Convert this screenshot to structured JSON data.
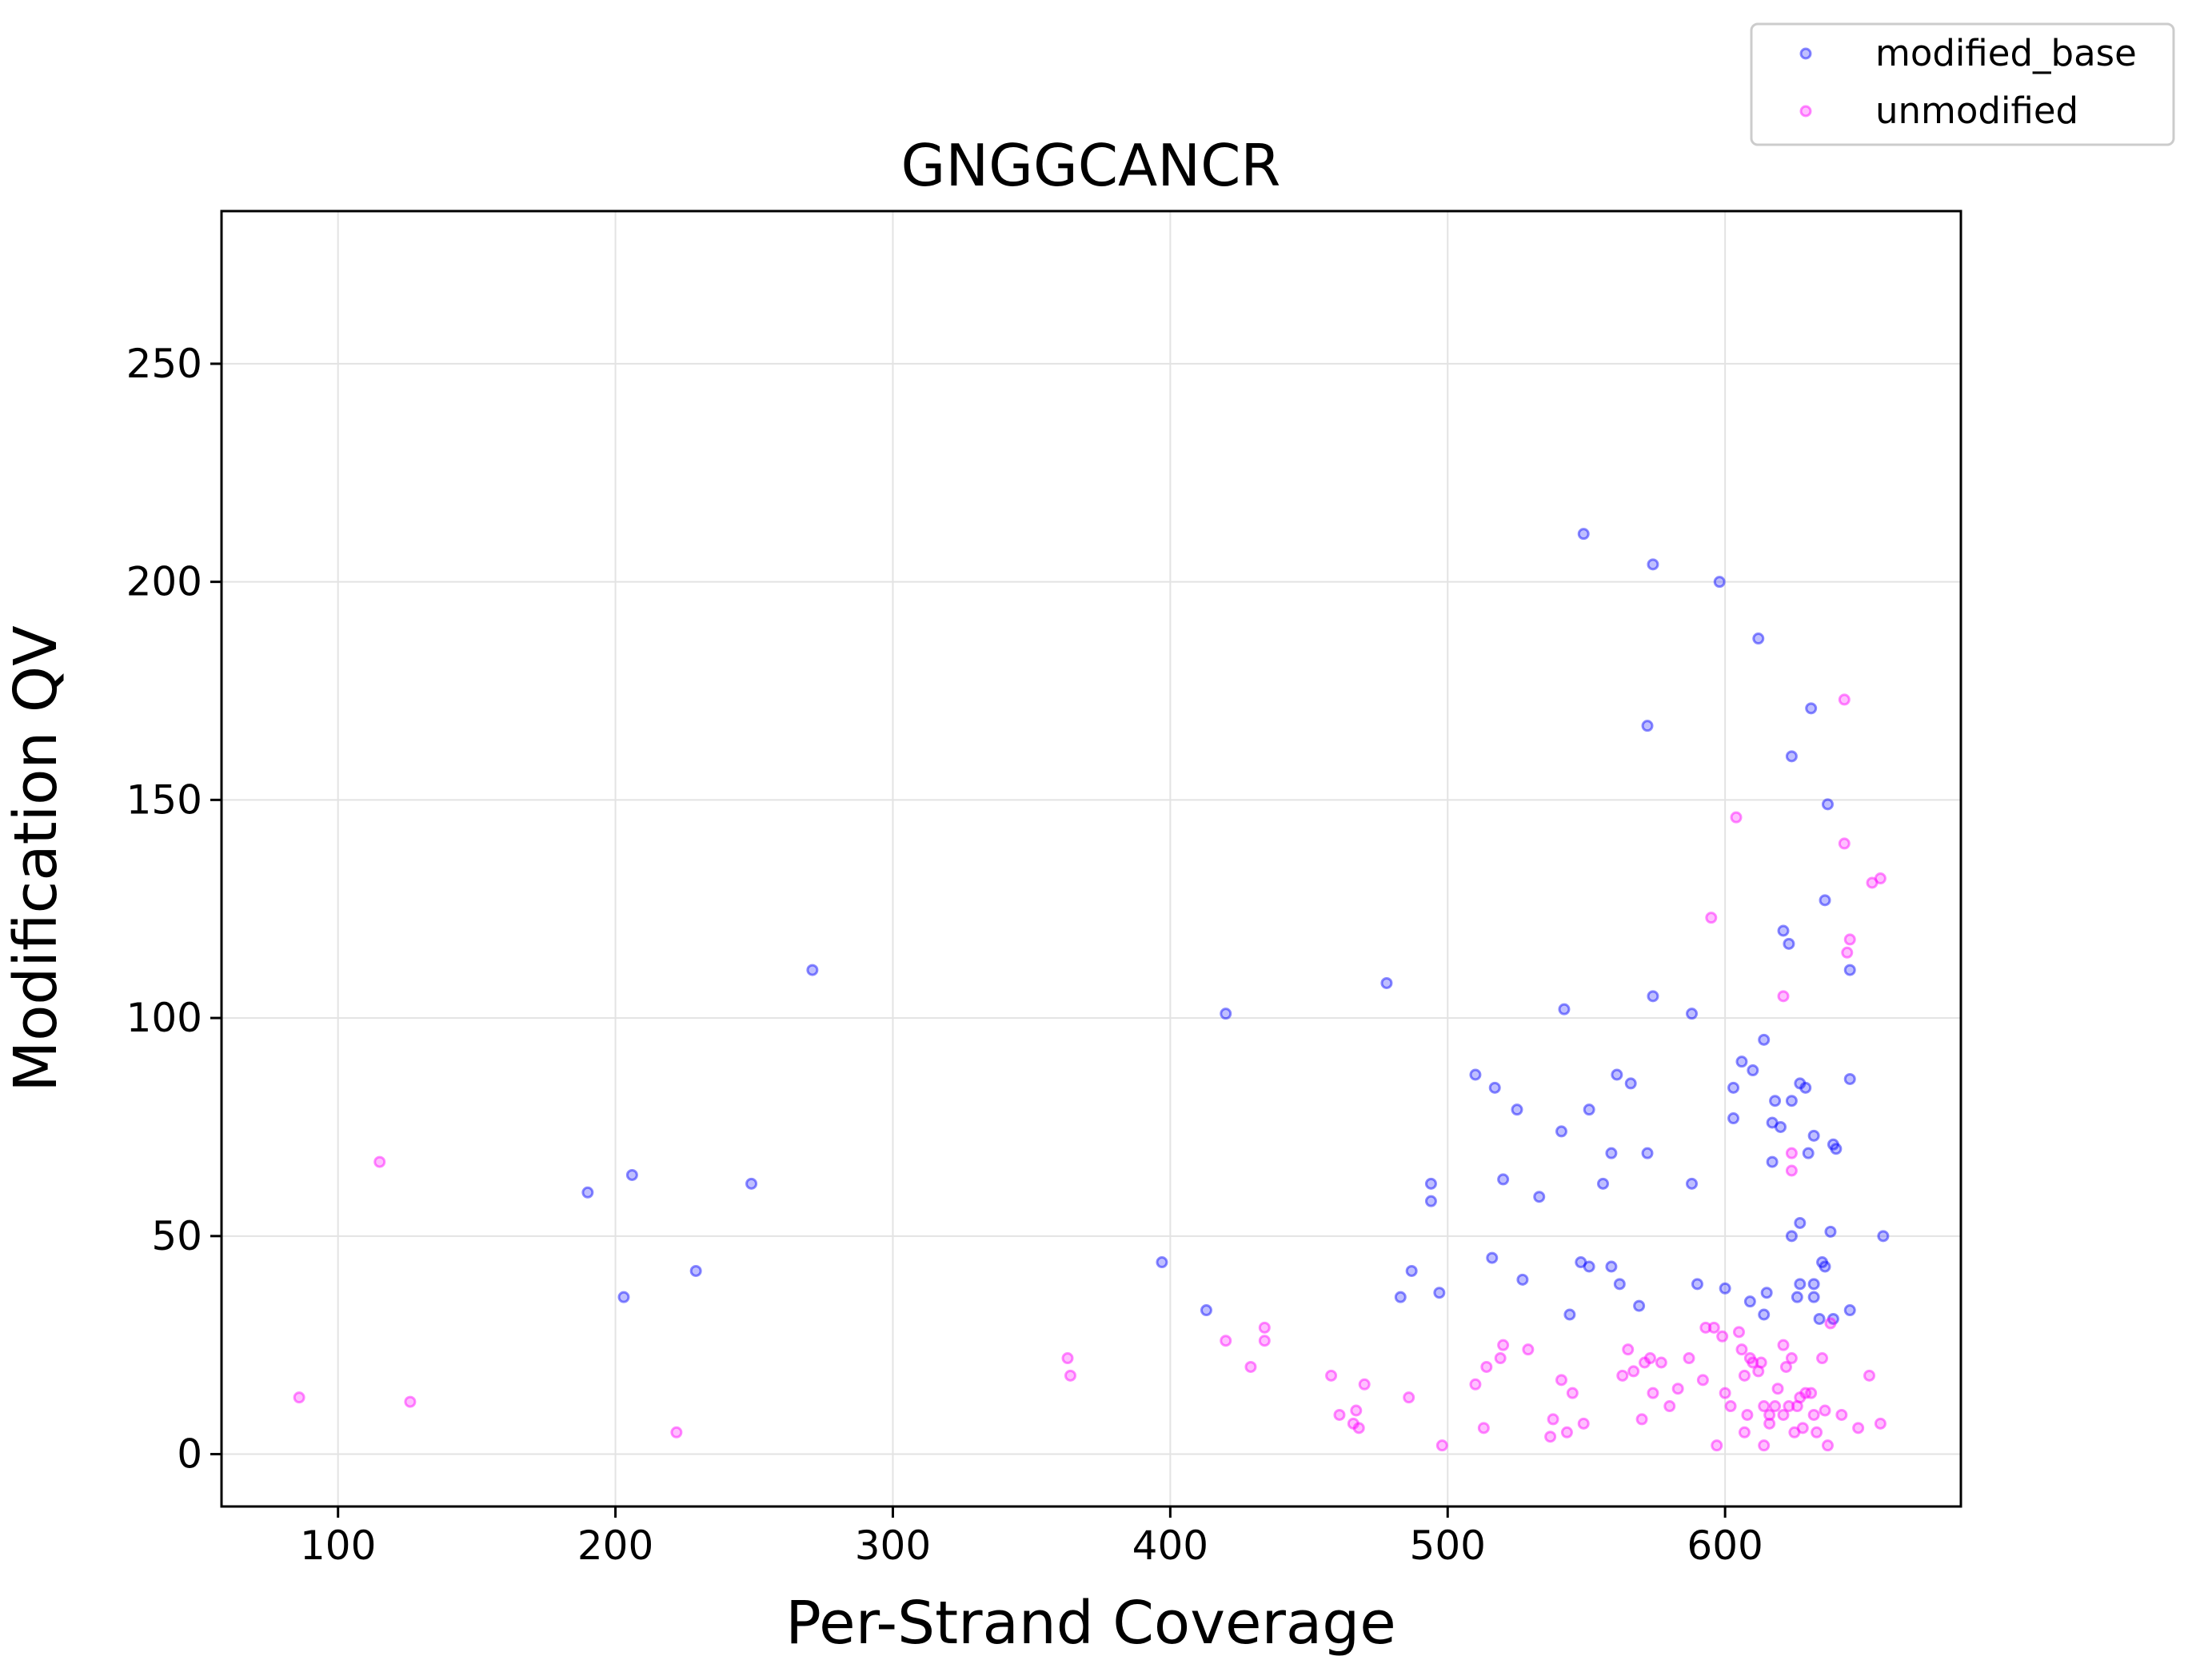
{
  "chart_data": {
    "type": "scatter",
    "title": "GNGGCANCR",
    "xlabel": "Per-Strand Coverage",
    "ylabel": "Modification QV",
    "xlim": [
      58,
      685
    ],
    "ylim": [
      -12,
      285
    ],
    "xticks": [
      100,
      200,
      300,
      400,
      500,
      600
    ],
    "yticks": [
      0,
      50,
      100,
      150,
      200,
      250
    ],
    "xtick_labels": [
      "100",
      "200",
      "300",
      "400",
      "500",
      "600"
    ],
    "ytick_labels": [
      "0",
      "50",
      "100",
      "150",
      "200",
      "250"
    ],
    "grid": true,
    "legend_position": "top-right",
    "series": [
      {
        "name": "modified_base",
        "color": "#0000ff",
        "points": [
          [
            190,
            60
          ],
          [
            203,
            36
          ],
          [
            206,
            64
          ],
          [
            229,
            42
          ],
          [
            249,
            62
          ],
          [
            271,
            111
          ],
          [
            397,
            44
          ],
          [
            413,
            33
          ],
          [
            420,
            101
          ],
          [
            478,
            108
          ],
          [
            483,
            36
          ],
          [
            487,
            42
          ],
          [
            494,
            62
          ],
          [
            494,
            58
          ],
          [
            497,
            37
          ],
          [
            510,
            87
          ],
          [
            516,
            45
          ],
          [
            517,
            84
          ],
          [
            520,
            63
          ],
          [
            525,
            79
          ],
          [
            527,
            40
          ],
          [
            533,
            59
          ],
          [
            541,
            74
          ],
          [
            542,
            102
          ],
          [
            544,
            32
          ],
          [
            548,
            44
          ],
          [
            549,
            211
          ],
          [
            551,
            43
          ],
          [
            551,
            79
          ],
          [
            556,
            62
          ],
          [
            559,
            69
          ],
          [
            559,
            43
          ],
          [
            561,
            87
          ],
          [
            562,
            39
          ],
          [
            566,
            85
          ],
          [
            569,
            34
          ],
          [
            572,
            167
          ],
          [
            572,
            69
          ],
          [
            574,
            204
          ],
          [
            574,
            105
          ],
          [
            588,
            101
          ],
          [
            588,
            62
          ],
          [
            590,
            39
          ],
          [
            598,
            200
          ],
          [
            600,
            38
          ],
          [
            603,
            84
          ],
          [
            603,
            77
          ],
          [
            606,
            90
          ],
          [
            609,
            35
          ],
          [
            610,
            88
          ],
          [
            612,
            187
          ],
          [
            614,
            95
          ],
          [
            614,
            32
          ],
          [
            615,
            37
          ],
          [
            617,
            76
          ],
          [
            617,
            67
          ],
          [
            618,
            81
          ],
          [
            620,
            75
          ],
          [
            621,
            120
          ],
          [
            623,
            117
          ],
          [
            624,
            160
          ],
          [
            624,
            50
          ],
          [
            624,
            81
          ],
          [
            626,
            36
          ],
          [
            627,
            85
          ],
          [
            627,
            53
          ],
          [
            627,
            39
          ],
          [
            629,
            84
          ],
          [
            630,
            69
          ],
          [
            631,
            171
          ],
          [
            632,
            73
          ],
          [
            632,
            36
          ],
          [
            632,
            39
          ],
          [
            634,
            31
          ],
          [
            635,
            44
          ],
          [
            636,
            127
          ],
          [
            636,
            43
          ],
          [
            637,
            149
          ],
          [
            638,
            51
          ],
          [
            639,
            71
          ],
          [
            639,
            31
          ],
          [
            640,
            70
          ],
          [
            645,
            111
          ],
          [
            645,
            86
          ],
          [
            645,
            33
          ],
          [
            657,
            50
          ]
        ]
      },
      {
        "name": "unmodified",
        "color": "#ff00ff",
        "points": [
          [
            86,
            13
          ],
          [
            115,
            67
          ],
          [
            126,
            12
          ],
          [
            222,
            5
          ],
          [
            363,
            22
          ],
          [
            364,
            18
          ],
          [
            420,
            26
          ],
          [
            429,
            20
          ],
          [
            434,
            29
          ],
          [
            434,
            26
          ],
          [
            458,
            18
          ],
          [
            461,
            9
          ],
          [
            466,
            7
          ],
          [
            467,
            10
          ],
          [
            468,
            6
          ],
          [
            470,
            16
          ],
          [
            486,
            13
          ],
          [
            498,
            2
          ],
          [
            510,
            16
          ],
          [
            513,
            6
          ],
          [
            514,
            20
          ],
          [
            519,
            22
          ],
          [
            520,
            25
          ],
          [
            529,
            24
          ],
          [
            537,
            4
          ],
          [
            538,
            8
          ],
          [
            541,
            17
          ],
          [
            543,
            5
          ],
          [
            545,
            14
          ],
          [
            549,
            7
          ],
          [
            563,
            18
          ],
          [
            565,
            24
          ],
          [
            567,
            19
          ],
          [
            570,
            8
          ],
          [
            571,
            21
          ],
          [
            573,
            22
          ],
          [
            574,
            14
          ],
          [
            577,
            21
          ],
          [
            580,
            11
          ],
          [
            583,
            15
          ],
          [
            587,
            22
          ],
          [
            592,
            17
          ],
          [
            593,
            29
          ],
          [
            595,
            123
          ],
          [
            596,
            29
          ],
          [
            597,
            2
          ],
          [
            599,
            27
          ],
          [
            600,
            14
          ],
          [
            602,
            11
          ],
          [
            604,
            146
          ],
          [
            605,
            28
          ],
          [
            606,
            24
          ],
          [
            607,
            5
          ],
          [
            607,
            18
          ],
          [
            608,
            9
          ],
          [
            609,
            22
          ],
          [
            610,
            21
          ],
          [
            612,
            19
          ],
          [
            613,
            21
          ],
          [
            614,
            2
          ],
          [
            614,
            11
          ],
          [
            616,
            9
          ],
          [
            616,
            7
          ],
          [
            618,
            11
          ],
          [
            619,
            15
          ],
          [
            621,
            105
          ],
          [
            621,
            25
          ],
          [
            621,
            9
          ],
          [
            622,
            20
          ],
          [
            623,
            11
          ],
          [
            624,
            69
          ],
          [
            624,
            65
          ],
          [
            624,
            22
          ],
          [
            625,
            5
          ],
          [
            626,
            11
          ],
          [
            627,
            13
          ],
          [
            628,
            6
          ],
          [
            629,
            14
          ],
          [
            631,
            14
          ],
          [
            632,
            9
          ],
          [
            633,
            5
          ],
          [
            635,
            22
          ],
          [
            636,
            10
          ],
          [
            637,
            2
          ],
          [
            638,
            30
          ],
          [
            642,
            9
          ],
          [
            643,
            173
          ],
          [
            643,
            140
          ],
          [
            644,
            115
          ],
          [
            645,
            118
          ],
          [
            648,
            6
          ],
          [
            652,
            18
          ],
          [
            653,
            131
          ],
          [
            656,
            132
          ],
          [
            656,
            7
          ]
        ]
      }
    ]
  }
}
